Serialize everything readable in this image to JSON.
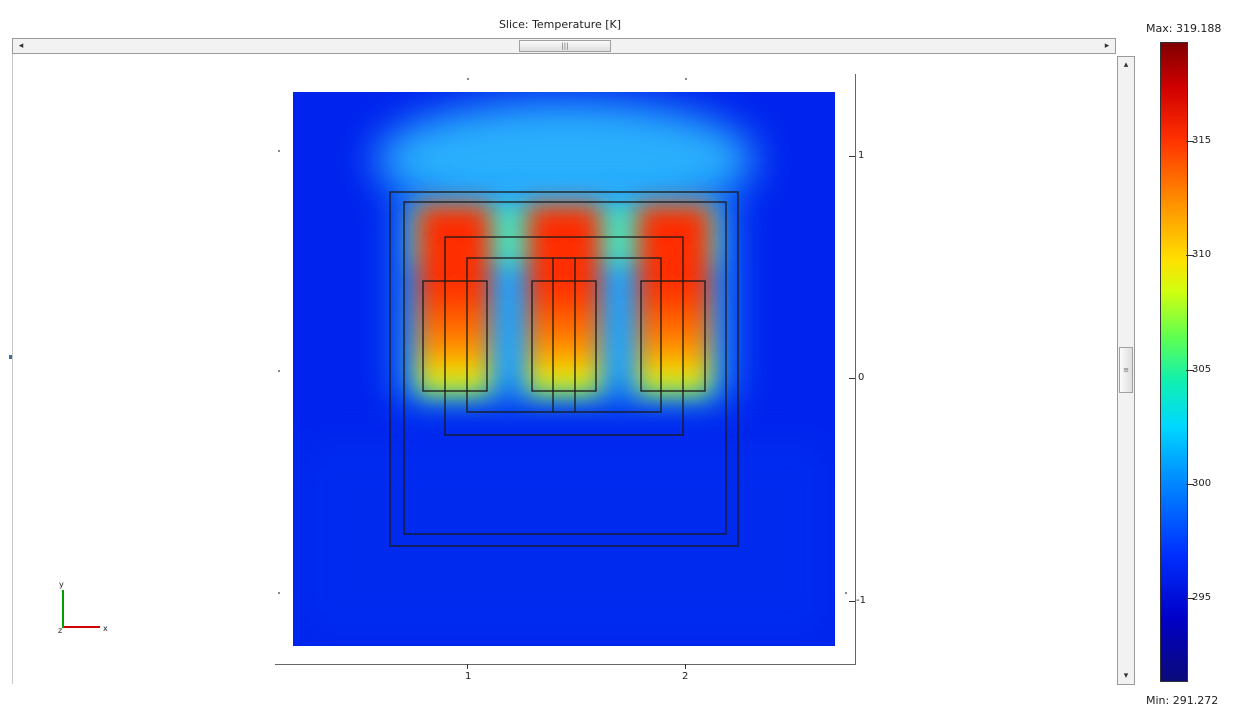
{
  "plot": {
    "title": "Slice: Temperature [K]"
  },
  "colorbar": {
    "max_label": "Max: 319.188",
    "min_label": "Min: 291.272",
    "ticks": [
      "315",
      "310",
      "305",
      "300",
      "295"
    ]
  },
  "axes": {
    "x_ticks": [
      "1",
      "2"
    ],
    "y_ticks": [
      "1",
      "0",
      "-1"
    ],
    "triad": {
      "x": "x",
      "y": "y",
      "z": "z"
    }
  },
  "scrollbars": {
    "h_left_arrow": "◂",
    "h_right_arrow": "▸",
    "h_grip": "|||",
    "v_up_arrow": "▴",
    "v_down_arrow": "▾",
    "v_grip": "≡"
  },
  "colors": {
    "cold": "#0010ff",
    "hot": "#ff2000"
  }
}
